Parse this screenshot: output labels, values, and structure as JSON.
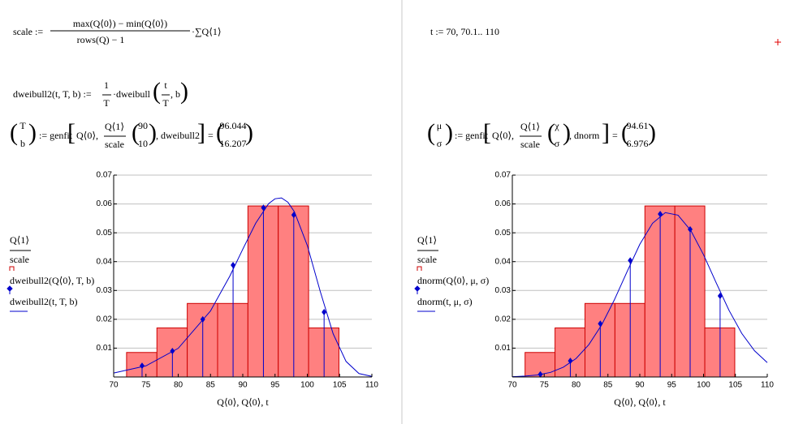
{
  "worksheet": {
    "scale_def": {
      "lhs": "scale :=",
      "num": "max(Q⟨0⟩) − min(Q⟨0⟩)",
      "den": "rows(Q) − 1",
      "rhs": "·∑Q⟨1⟩"
    },
    "t_def": "t := 70, 70.1.. 110",
    "dweibull2_def": {
      "lhs": "dweibull2(t, T, b) :=",
      "num": "1",
      "den": "T",
      "mid": "·dweibull",
      "inner_num": "t",
      "inner_den": "T",
      "inner_rest": ", b"
    },
    "fit_left": {
      "params": [
        "T",
        "b"
      ],
      "op": ":= genfit",
      "arg1": "Q⟨0⟩,",
      "arg2_num": "Q⟨1⟩",
      "arg2_den": "scale",
      "guess": [
        90,
        10
      ],
      "func": ", dweibull2",
      "eq": "=",
      "result": [
        96.044,
        16.207
      ]
    },
    "fit_right": {
      "params": [
        "μ",
        "σ"
      ],
      "op": ":= genfit",
      "arg1": "Q⟨0⟩,",
      "arg2_num": "Q⟨1⟩",
      "arg2_den": "scale",
      "guess": [
        "χ",
        "σ"
      ],
      "func": ", dnorm",
      "eq": "=",
      "result": [
        94.61,
        6.976
      ]
    }
  },
  "chart_data": [
    {
      "type": "histogram",
      "xlabel": "Q⟨0⟩, Q⟨0⟩, t",
      "xlim": [
        70,
        110
      ],
      "xticks": [
        70,
        75,
        80,
        85,
        90,
        95,
        100,
        105,
        110
      ],
      "ylim": [
        0,
        0.07
      ],
      "yticks": [
        0.01,
        0.02,
        0.03,
        0.04,
        0.05,
        0.06,
        0.07
      ],
      "grid": true,
      "histogram": {
        "name": [
          "Q⟨1⟩",
          "scale"
        ],
        "color": "#ff8080",
        "edge_color": "#cc0000",
        "bins": [
          72,
          76.7,
          81.4,
          86.1,
          90.8,
          95.5,
          100.2,
          104.9
        ],
        "values": [
          0.0085,
          0.017,
          0.0255,
          0.0255,
          0.0593,
          0.0593,
          0.017
        ]
      },
      "series": [
        {
          "name": "dweibull2(Q⟨0⟩, T, b)",
          "type": "stem",
          "color": "#0000cc",
          "x": [
            74.4,
            79.1,
            83.8,
            88.5,
            93.2,
            97.9,
            102.6
          ],
          "values": [
            0.0039,
            0.009,
            0.02,
            0.0388,
            0.0587,
            0.0562,
            0.0225
          ]
        },
        {
          "name": "dweibull2(t, T, b)",
          "type": "line",
          "color": "#0000cc",
          "x": [
            70,
            75,
            80,
            85,
            88,
            90,
            92,
            94,
            95,
            96,
            97,
            98,
            100,
            102,
            104,
            106,
            108,
            110
          ],
          "values": [
            0.00137,
            0.00386,
            0.00994,
            0.0229,
            0.035,
            0.0443,
            0.0533,
            0.0601,
            0.0618,
            0.0621,
            0.0606,
            0.0573,
            0.0456,
            0.0297,
            0.015,
            0.0054,
            0.0012,
            0.0002
          ]
        }
      ]
    },
    {
      "type": "histogram",
      "xlabel": "Q⟨0⟩, Q⟨0⟩, t",
      "xlim": [
        70,
        110
      ],
      "xticks": [
        70,
        75,
        80,
        85,
        90,
        95,
        100,
        105,
        110
      ],
      "ylim": [
        0,
        0.07
      ],
      "yticks": [
        0.01,
        0.02,
        0.03,
        0.04,
        0.05,
        0.06,
        0.07
      ],
      "grid": true,
      "histogram": {
        "name": [
          "Q⟨1⟩",
          "scale"
        ],
        "color": "#ff8080",
        "edge_color": "#cc0000",
        "bins": [
          72,
          76.7,
          81.4,
          86.1,
          90.8,
          95.5,
          100.2,
          104.9
        ],
        "values": [
          0.0085,
          0.017,
          0.0255,
          0.0255,
          0.0593,
          0.0593,
          0.017
        ]
      },
      "series": [
        {
          "name": "dnorm(Q⟨0⟩, μ, σ)",
          "type": "stem",
          "color": "#0000cc",
          "x": [
            74.4,
            79.1,
            83.8,
            88.5,
            93.2,
            97.9,
            102.6
          ],
          "values": [
            0.0009,
            0.0056,
            0.0185,
            0.0404,
            0.0565,
            0.0512,
            0.0281
          ]
        },
        {
          "name": "dnorm(t, μ, σ)",
          "type": "line",
          "color": "#0000cc",
          "x": [
            70,
            72,
            74,
            76,
            78,
            80,
            82,
            84,
            86,
            88,
            90,
            92,
            94,
            96,
            98,
            100,
            102,
            104,
            106,
            108,
            110
          ],
          "values": [
            0.0001,
            0.0003,
            0.0007,
            0.0016,
            0.0034,
            0.0064,
            0.0112,
            0.018,
            0.0267,
            0.0365,
            0.046,
            0.0533,
            0.057,
            0.0561,
            0.0508,
            0.0424,
            0.0326,
            0.0231,
            0.0151,
            0.0091,
            0.005
          ]
        }
      ]
    }
  ]
}
